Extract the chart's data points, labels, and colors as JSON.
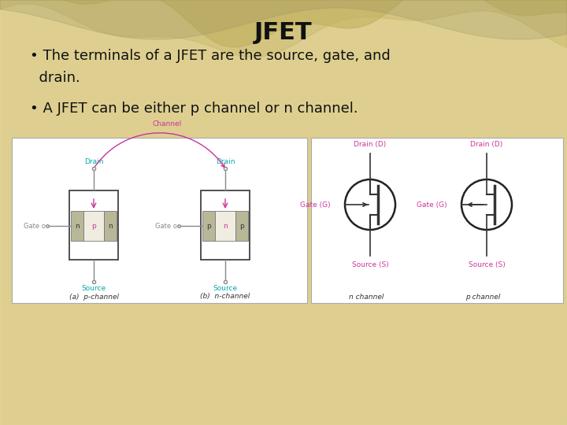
{
  "title": "JFET",
  "bullet1": "• The terminals of a JFET are the source, gate, and\n  drain.",
  "bullet2": "• A JFET can be either p channel or n channel.",
  "bg_color": "#d4c080",
  "title_font_size": 22,
  "bullet_font_size": 13,
  "diagram_bg": "#ffffff",
  "pink_color": "#cc3399",
  "cyan_color": "#00aaaa",
  "n_box_color": "#b8b898",
  "p_box_color": "#c8c8a8",
  "dark_color": "#333333",
  "gray_color": "#888888"
}
